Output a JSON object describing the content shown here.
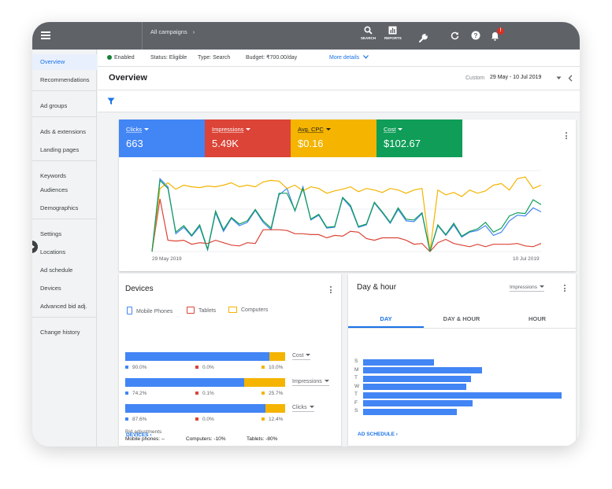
{
  "topbar": {
    "breadcrumb": "All campaigns",
    "tools": [
      {
        "label": "SEARCH",
        "icon": "search-icon"
      },
      {
        "label": "REPORTS",
        "icon": "reports-icon"
      },
      {
        "label": "TOOLS &\nSETTINGS",
        "icon": "wrench-icon"
      }
    ],
    "notification_badge": "!"
  },
  "sidebar": {
    "items": [
      "Overview",
      "Recommendations",
      "Ad groups",
      "Ads & extensions",
      "Landing pages",
      "Keywords",
      "Audiences",
      "Demographics",
      "Settings",
      "Locations",
      "Ad schedule",
      "Devices",
      "Advanced bid adj.",
      "Change history"
    ],
    "active": "Overview"
  },
  "status": {
    "enabled": "Enabled",
    "status": "Status: Eligible",
    "type": "Type: Search",
    "budget": "Budget: ₹700.00/day",
    "more": "More details"
  },
  "overview": {
    "title": "Overview",
    "range_label": "Custom",
    "range": "29 May - 10 Jul 2019"
  },
  "metrics": [
    {
      "label": "Clicks",
      "value": "663",
      "color": "#4285f4"
    },
    {
      "label": "Impressions",
      "value": "5.49K",
      "color": "#db4437"
    },
    {
      "label": "Avg. CPC",
      "value": "$0.16",
      "color": "#f4b400"
    },
    {
      "label": "Cost",
      "value": "$102.67",
      "color": "#0f9d58"
    }
  ],
  "chart_data": {
    "type": "line",
    "x_start_label": "29 May 2019",
    "x_end_label": "10 Jul 2019",
    "series": [
      {
        "name": "Clicks",
        "color": "#4285f4",
        "values": [
          0.0,
          0.9,
          0.8,
          0.22,
          0.3,
          0.19,
          0.31,
          0.02,
          0.48,
          0.25,
          0.41,
          0.32,
          0.36,
          0.51,
          0.36,
          0.27,
          0.7,
          0.78,
          0.5,
          0.8,
          0.39,
          0.45,
          0.29,
          0.3,
          0.66,
          0.55,
          0.3,
          0.33,
          0.6,
          0.48,
          0.35,
          0.52,
          0.38,
          0.37,
          0.47,
          0.0,
          0.32,
          0.2,
          0.33,
          0.18,
          0.24,
          0.26,
          0.32,
          0.2,
          0.24,
          0.38,
          0.45,
          0.44,
          0.54,
          0.49
        ]
      },
      {
        "name": "Impressions",
        "color": "#db4437",
        "values": [
          0.0,
          0.65,
          0.14,
          0.13,
          0.14,
          0.09,
          0.11,
          0.1,
          0.14,
          0.11,
          0.08,
          0.07,
          0.11,
          0.1,
          0.27,
          0.27,
          0.27,
          0.26,
          0.22,
          0.22,
          0.21,
          0.21,
          0.17,
          0.2,
          0.19,
          0.25,
          0.24,
          0.16,
          0.14,
          0.17,
          0.17,
          0.17,
          0.14,
          0.09,
          0.1,
          0.0,
          0.11,
          0.15,
          0.1,
          0.08,
          0.06,
          0.09,
          0.06,
          0.09,
          0.09,
          0.09,
          0.1,
          0.07,
          0.06,
          0.1
        ]
      },
      {
        "name": "Avg. CPC",
        "color": "#f4b400",
        "values": [
          0.0,
          0.78,
          0.85,
          0.77,
          0.82,
          0.8,
          0.79,
          0.81,
          0.8,
          0.82,
          0.85,
          0.8,
          0.82,
          0.8,
          0.86,
          0.88,
          0.87,
          0.78,
          0.82,
          0.75,
          0.8,
          0.78,
          0.72,
          0.75,
          0.77,
          0.8,
          0.74,
          0.78,
          0.76,
          0.73,
          0.78,
          0.76,
          0.72,
          0.76,
          0.78,
          0.0,
          0.76,
          0.7,
          0.73,
          0.68,
          0.76,
          0.72,
          0.75,
          0.82,
          0.84,
          0.76,
          0.9,
          0.92,
          0.78,
          0.82
        ]
      },
      {
        "name": "Cost",
        "color": "#0f9d58",
        "values": [
          0.0,
          0.88,
          0.78,
          0.24,
          0.32,
          0.2,
          0.33,
          0.03,
          0.5,
          0.27,
          0.42,
          0.34,
          0.38,
          0.52,
          0.38,
          0.29,
          0.72,
          0.72,
          0.51,
          0.78,
          0.4,
          0.46,
          0.3,
          0.31,
          0.67,
          0.57,
          0.31,
          0.34,
          0.61,
          0.49,
          0.36,
          0.54,
          0.4,
          0.39,
          0.48,
          0.0,
          0.33,
          0.21,
          0.35,
          0.19,
          0.25,
          0.28,
          0.36,
          0.24,
          0.29,
          0.44,
          0.48,
          0.47,
          0.64,
          0.58
        ]
      }
    ]
  },
  "devices": {
    "title": "Devices",
    "legend": [
      "Mobile Phones",
      "Tablets",
      "Computers"
    ],
    "colors": {
      "mobile": "#4285f4",
      "tablet": "#db4437",
      "computer": "#f4b400"
    },
    "rows": [
      {
        "metric": "Cost",
        "mobile": 90.0,
        "tablet": 0.0,
        "computer": 10.0,
        "labels": [
          "90.0%",
          "0.0%",
          "10.0%"
        ]
      },
      {
        "metric": "Impressions",
        "mobile": 74.2,
        "tablet": 0.1,
        "computer": 25.7,
        "labels": [
          "74.2%",
          "0.1%",
          "25.7%"
        ]
      },
      {
        "metric": "Clicks",
        "mobile": 87.6,
        "tablet": 0.0,
        "computer": 12.4,
        "labels": [
          "87.6%",
          "0.0%",
          "12.4%"
        ]
      }
    ],
    "bid_title": "Bid adjustments",
    "bid_mobile": "Mobile phones: --",
    "bid_computers": "Computers: -10%",
    "bid_tablets": "Tablets: -80%",
    "footer_link": "DEVICES"
  },
  "day_hour": {
    "title": "Day & hour",
    "metric_select": "Impressions",
    "tabs": [
      "DAY",
      "DAY & HOUR",
      "HOUR"
    ],
    "active_tab": "DAY",
    "days": [
      {
        "label": "S",
        "value": 84
      },
      {
        "label": "M",
        "value": 141
      },
      {
        "label": "T",
        "value": 128
      },
      {
        "label": "W",
        "value": 123
      },
      {
        "label": "T",
        "value": 236
      },
      {
        "label": "F",
        "value": 130
      },
      {
        "label": "S",
        "value": 111
      }
    ],
    "footer_link": "AD SCHEDULE"
  }
}
